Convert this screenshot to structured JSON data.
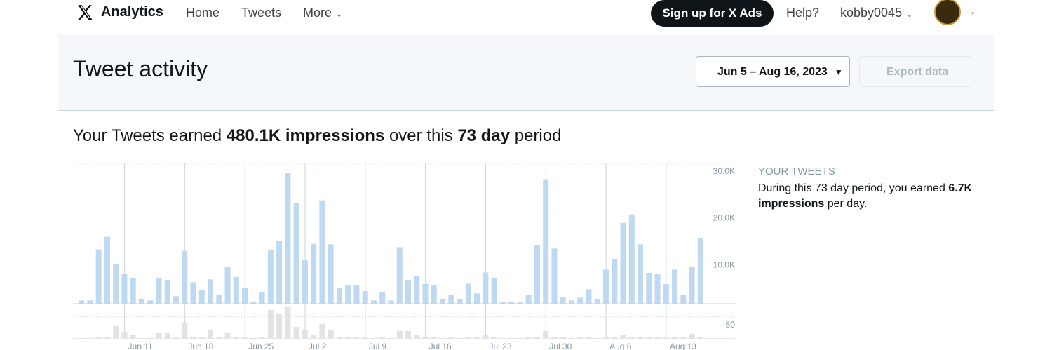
{
  "nav": {
    "brand": "Analytics",
    "links": [
      "Home",
      "Tweets",
      "More"
    ],
    "signup": "Sign up for X Ads",
    "help": "Help?",
    "username": "kobby0045"
  },
  "header": {
    "title": "Tweet activity",
    "date_range": "Jun 5 – Aug 16, 2023",
    "export": "Export data"
  },
  "summary": {
    "prefix": "Your Tweets earned",
    "impressions": "480.1K impressions",
    "middle": "over this",
    "days": "73 day",
    "suffix": "period"
  },
  "side": {
    "heading": "YOUR TWEETS",
    "text": "During this 73 day period, you earned",
    "rate": "6.7K impressions",
    "suffix": "per day."
  },
  "chart_data": [
    {
      "type": "bar",
      "color": "#bed9f1",
      "grid": true,
      "categories": [
        null,
        null,
        null,
        null,
        null,
        null,
        "Jun 11",
        null,
        null,
        null,
        null,
        null,
        null,
        "Jun 18",
        null,
        null,
        null,
        null,
        null,
        null,
        "Jun 25",
        null,
        null,
        null,
        null,
        null,
        null,
        "Jul 2",
        null,
        null,
        null,
        null,
        null,
        null,
        "Jul 9",
        null,
        null,
        null,
        null,
        null,
        null,
        "Jul 16",
        null,
        null,
        null,
        null,
        null,
        null,
        "Jul 23",
        null,
        null,
        null,
        null,
        null,
        null,
        "Jul 30",
        null,
        null,
        null,
        null,
        null,
        null,
        "Aug 6",
        null,
        null,
        null,
        null,
        null,
        null,
        "Aug 13",
        null,
        null,
        null
      ],
      "values": [
        700,
        700,
        11600,
        14300,
        8400,
        6300,
        5500,
        900,
        700,
        5400,
        5100,
        1600,
        11300,
        4600,
        3000,
        5200,
        1800,
        7800,
        5700,
        3300,
        400,
        2400,
        11500,
        13400,
        27900,
        21500,
        9300,
        12800,
        22100,
        12700,
        3300,
        3900,
        4000,
        2700,
        700,
        2500,
        700,
        12100,
        5100,
        6000,
        4200,
        4000,
        900,
        1900,
        1000,
        4300,
        2200,
        6700,
        5400,
        400,
        300,
        300,
        1900,
        12500,
        26600,
        11800,
        1500,
        700,
        1300,
        3100,
        900,
        7300,
        9600,
        17300,
        19100,
        12700,
        6600,
        6300,
        4200,
        7300,
        1800,
        7800,
        14000
      ],
      "ylim": [
        0,
        30000
      ],
      "yticks": [
        {
          "value": 10000,
          "label": "10.0K"
        },
        {
          "value": 20000,
          "label": "20.0K"
        },
        {
          "value": 30000,
          "label": "30.0K"
        }
      ]
    },
    {
      "type": "bar",
      "color": "#e3e3e3",
      "grid": true,
      "categories": [
        null,
        null,
        null,
        null,
        null,
        null,
        "Jun 11",
        null,
        null,
        null,
        null,
        null,
        null,
        "Jun 18",
        null,
        null,
        null,
        null,
        null,
        null,
        "Jun 25",
        null,
        null,
        null,
        null,
        null,
        null,
        "Jul 2",
        null,
        null,
        null,
        null,
        null,
        null,
        "Jul 9",
        null,
        null,
        null,
        null,
        null,
        null,
        "Jul 16",
        null,
        null,
        null,
        null,
        null,
        null,
        "Jul 23",
        null,
        null,
        null,
        null,
        null,
        null,
        "Jul 30",
        null,
        null,
        null,
        null,
        null,
        null,
        "Aug 6",
        null,
        null,
        null,
        null,
        null,
        null,
        "Aug 13",
        null,
        null,
        null
      ],
      "values": [
        2,
        2,
        3,
        3,
        29,
        16,
        8,
        2,
        2,
        13,
        13,
        3,
        37,
        5,
        3,
        21,
        3,
        13,
        5,
        3,
        2,
        3,
        66,
        56,
        73,
        27,
        21,
        10,
        34,
        21,
        5,
        5,
        3,
        3,
        2,
        3,
        2,
        18,
        18,
        8,
        5,
        5,
        2,
        3,
        2,
        3,
        3,
        8,
        5,
        2,
        2,
        2,
        3,
        5,
        18,
        5,
        3,
        2,
        3,
        3,
        2,
        5,
        5,
        8,
        5,
        5,
        3,
        3,
        3,
        5,
        3,
        11,
        5
      ],
      "ylim": [
        0,
        80
      ],
      "yticks": [
        50
      ]
    }
  ]
}
